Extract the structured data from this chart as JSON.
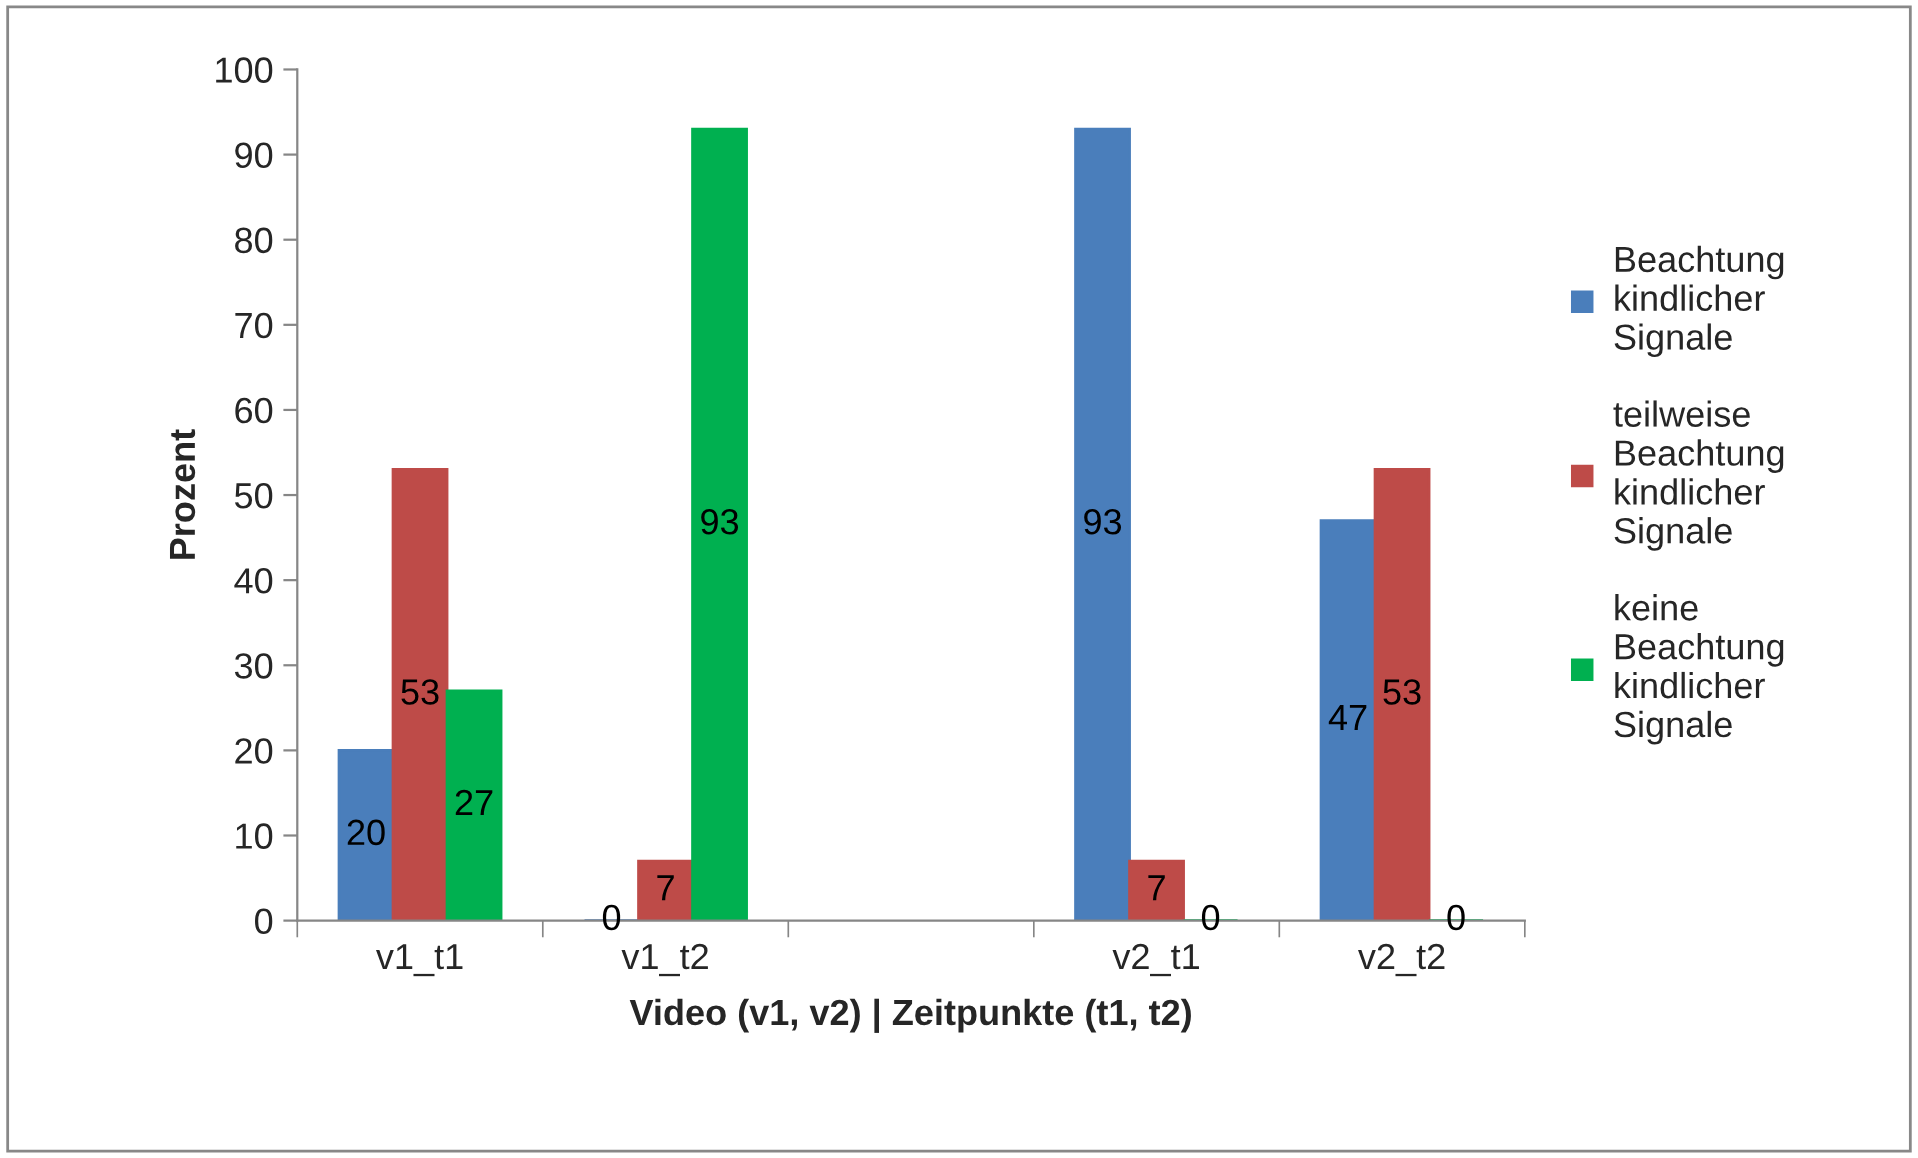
{
  "chart_data": {
    "type": "bar",
    "categories": [
      "v1_t1",
      "v1_t2",
      null,
      "v2_t1",
      "v2_t2"
    ],
    "series": [
      {
        "name": "Beachtung kindlicher Signale",
        "color": "#4a7ebb",
        "values": [
          20,
          0,
          null,
          93,
          47
        ]
      },
      {
        "name": "teilweise Beachtung kindlicher Signale",
        "color": "#be4b48",
        "values": [
          53,
          7,
          null,
          7,
          53
        ]
      },
      {
        "name": "keine Beachtung kindlicher Signale",
        "color": "#00b050",
        "values": [
          27,
          93,
          null,
          0,
          0
        ]
      }
    ],
    "xlabel": "Video (v1, v2) | Zeitpunkte (t1, t2)",
    "ylabel": "Prozent",
    "ylim": [
      0,
      100
    ],
    "yticks": [
      0,
      10,
      20,
      30,
      40,
      50,
      60,
      70,
      80,
      90,
      100
    ],
    "data_labels": true,
    "grid": false,
    "legend": "right"
  }
}
